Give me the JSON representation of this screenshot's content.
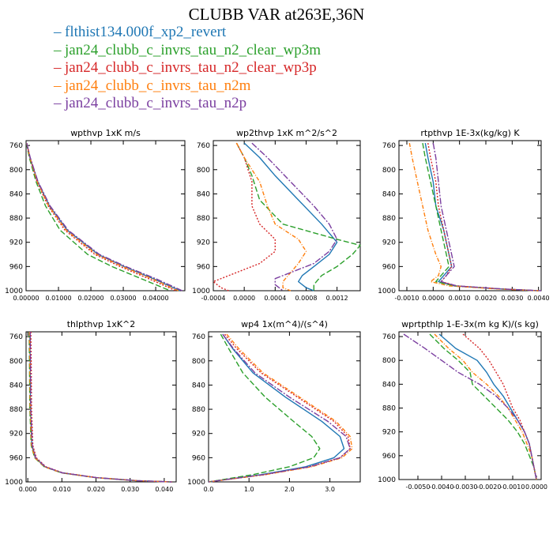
{
  "title": "CLUBB VAR at263E,36N",
  "legend": [
    {
      "name": "flthist134.000f_xp2_revert",
      "color": "#1f77b4"
    },
    {
      "name": "jan24_clubb_c_invrs_tau_n2_clear_wp3m",
      "color": "#2ca02c"
    },
    {
      "name": "jan24_clubb_c_invrs_tau_n2_clear_wp3p",
      "color": "#d62728"
    },
    {
      "name": "jan24_clubb_c_invrs_tau_n2m",
      "color": "#ff7f0e"
    },
    {
      "name": "jan24_clubb_c_invrs_tau_n2p",
      "color": "#7b3fa0"
    }
  ],
  "chart_data": [
    {
      "type": "line",
      "title": "wpthvp   1xK m/s",
      "xlim": [
        0,
        0.049
      ],
      "ylim": [
        1000,
        752
      ],
      "y_inverted": true,
      "xticks": [
        0,
        0.01,
        0.02,
        0.03,
        0.04
      ],
      "xtick_labels": [
        "0.00000",
        "0.01000",
        "0.02000",
        "0.03000",
        "0.04000"
      ],
      "yticks": [
        760,
        800,
        840,
        880,
        920,
        960,
        1000
      ],
      "y": [
        756,
        780,
        820,
        860,
        900,
        940,
        960,
        980,
        1000
      ],
      "series": [
        {
          "x": [
            0.0002,
            0.0012,
            0.0036,
            0.0072,
            0.0127,
            0.0222,
            0.0302,
            0.0392,
            0.0475
          ]
        },
        {
          "x": [
            0.0001,
            0.001,
            0.0031,
            0.006,
            0.0105,
            0.019,
            0.0265,
            0.0355,
            0.0445
          ]
        },
        {
          "x": [
            0.0002,
            0.0012,
            0.0034,
            0.0068,
            0.012,
            0.0212,
            0.029,
            0.0378,
            0.0462
          ]
        },
        {
          "x": [
            0.0002,
            0.0012,
            0.0035,
            0.007,
            0.0124,
            0.0218,
            0.0298,
            0.0388,
            0.047
          ]
        },
        {
          "x": [
            0.0002,
            0.0013,
            0.0037,
            0.0074,
            0.013,
            0.0226,
            0.0308,
            0.04,
            0.0482
          ]
        }
      ]
    },
    {
      "type": "line",
      "title": "wp2thvp   1xK m^2/s^2",
      "xlim": [
        -0.0004,
        0.0015
      ],
      "ylim": [
        1000,
        752
      ],
      "y_inverted": true,
      "xticks": [
        -0.0004,
        0,
        0.0004,
        0.0008,
        0.0012
      ],
      "xtick_labels": [
        "-0.0004",
        "0.0000",
        "0.0004",
        "0.0008",
        "0.0012"
      ],
      "yticks": [
        760,
        800,
        840,
        880,
        920,
        960,
        1000
      ],
      "series": [
        {
          "y": [
            756,
            780,
            810,
            850,
            890,
            920,
            940,
            960,
            975,
            985,
            995,
            1000
          ],
          "x": [
            0.0,
            0.0002,
            0.0004,
            0.0007,
            0.001,
            0.0012,
            0.0011,
            0.0009,
            0.00075,
            0.0007,
            0.0008,
            0.0009
          ]
        },
        {
          "y": [
            756,
            780,
            810,
            850,
            890,
            915,
            925,
            940,
            960,
            975,
            990,
            1000
          ],
          "x": [
            -0.0001,
            0.0,
            0.0001,
            0.0002,
            0.0005,
            0.0012,
            0.0015,
            0.0014,
            0.0012,
            0.001,
            0.0009,
            0.0009
          ]
        },
        {
          "y": [
            756,
            780,
            820,
            860,
            890,
            915,
            935,
            955,
            975,
            985,
            995,
            1000
          ],
          "x": [
            -0.0001,
            0.0,
            0.0001,
            0.0001,
            0.0002,
            0.0004,
            0.0004,
            0.0002,
            -0.0002,
            -0.0004,
            -0.0003,
            -0.0002
          ]
        },
        {
          "y": [
            756,
            780,
            820,
            860,
            890,
            915,
            935,
            955,
            970,
            985,
            995,
            1000
          ],
          "x": [
            -0.0001,
            0.0,
            0.0002,
            0.0003,
            0.0004,
            0.0007,
            0.0008,
            0.0007,
            0.0006,
            0.0005,
            0.0005,
            0.0006
          ]
        },
        {
          "y": [
            756,
            780,
            820,
            860,
            890,
            915,
            935,
            955,
            970,
            980,
            990,
            1000
          ],
          "x": [
            0.0001,
            0.0003,
            0.0006,
            0.0009,
            0.0011,
            0.0012,
            0.0011,
            0.0009,
            0.0006,
            0.0004,
            0.0004,
            0.0005
          ]
        }
      ]
    },
    {
      "type": "line",
      "title": "rtpthvp   1E-3x(kg/kg) K",
      "xlim": [
        -0.0013,
        0.0041
      ],
      "ylim": [
        1000,
        752
      ],
      "y_inverted": true,
      "xticks": [
        -0.001,
        0,
        0.001,
        0.002,
        0.003,
        0.004
      ],
      "xtick_labels": [
        "-0.0010",
        "0.0000",
        "0.0010",
        "0.0020",
        "0.0030",
        "0.0040"
      ],
      "yticks": [
        760,
        800,
        840,
        880,
        920,
        960,
        1000
      ],
      "series": [
        {
          "y": [
            756,
            780,
            820,
            860,
            900,
            940,
            960,
            975,
            985,
            992,
            997,
            1000
          ],
          "x": [
            -0.0003,
            -0.0002,
            0.0,
            0.0001,
            0.0004,
            0.0006,
            0.0007,
            0.0004,
            0.0002,
            0.0008,
            0.0025,
            0.004
          ]
        },
        {
          "y": [
            756,
            780,
            820,
            860,
            900,
            940,
            960,
            975,
            985,
            992,
            997,
            1000
          ],
          "x": [
            -0.0004,
            -0.0003,
            -0.0001,
            0.0001,
            0.0003,
            0.0005,
            0.0006,
            0.0003,
            0.0001,
            0.0008,
            0.0025,
            0.004
          ]
        },
        {
          "y": [
            756,
            780,
            820,
            860,
            900,
            940,
            960,
            975,
            985,
            992,
            997,
            1000
          ],
          "x": [
            -0.0002,
            -0.0001,
            0.0001,
            0.0002,
            0.0004,
            0.0006,
            0.0007,
            0.0005,
            0.0003,
            0.0009,
            0.0026,
            0.004
          ]
        },
        {
          "y": [
            756,
            780,
            820,
            860,
            900,
            940,
            960,
            975,
            985,
            992,
            997,
            1000
          ],
          "x": [
            -0.0009,
            -0.0008,
            -0.0006,
            -0.0004,
            -0.0002,
            0.0001,
            0.0003,
            0.0002,
            -0.0001,
            0.0006,
            0.0024,
            0.004
          ]
        },
        {
          "y": [
            756,
            780,
            820,
            860,
            900,
            940,
            960,
            975,
            985,
            992,
            997,
            1000
          ],
          "x": [
            0.0,
            0.0001,
            0.0002,
            0.0003,
            0.0005,
            0.0007,
            0.0008,
            0.0005,
            0.0003,
            0.0009,
            0.0026,
            0.0041
          ]
        }
      ]
    },
    {
      "type": "line",
      "title": "thlpthvp   1xK^2",
      "xlim": [
        -0.0005,
        0.0435
      ],
      "ylim": [
        1000,
        752
      ],
      "y_inverted": true,
      "xticks": [
        0,
        0.01,
        0.02,
        0.03,
        0.04
      ],
      "xtick_labels": [
        "0.000",
        "0.010",
        "0.020",
        "0.030",
        "0.040"
      ],
      "yticks": [
        760,
        800,
        840,
        880,
        920,
        960,
        1000
      ],
      "y": [
        752,
        800,
        880,
        940,
        960,
        975,
        985,
        993,
        998,
        1000
      ],
      "series": [
        {
          "x": [
            0.0006,
            0.0007,
            0.0008,
            0.0012,
            0.0022,
            0.005,
            0.01,
            0.02,
            0.032,
            0.042
          ]
        },
        {
          "x": [
            0.0004,
            0.0005,
            0.0006,
            0.001,
            0.002,
            0.0048,
            0.0098,
            0.0198,
            0.0318,
            0.0418
          ]
        },
        {
          "x": [
            0.0009,
            0.001,
            0.0011,
            0.0015,
            0.0025,
            0.0053,
            0.0103,
            0.0203,
            0.0323,
            0.0423
          ]
        },
        {
          "x": [
            0.0005,
            0.0006,
            0.0007,
            0.0011,
            0.0021,
            0.0049,
            0.0099,
            0.0199,
            0.0319,
            0.0419
          ]
        },
        {
          "x": [
            0.0007,
            0.0008,
            0.0009,
            0.0013,
            0.0023,
            0.0051,
            0.0101,
            0.0201,
            0.0321,
            0.0421
          ]
        }
      ]
    },
    {
      "type": "line",
      "title": "wp4   1x(m^4)/(s^4)",
      "xlim": [
        0,
        3.75
      ],
      "ylim": [
        1000,
        752
      ],
      "y_inverted": true,
      "xticks": [
        0,
        1,
        2,
        3
      ],
      "xtick_labels": [
        "0.0",
        "1.0",
        "2.0",
        "3.0"
      ],
      "yticks": [
        760,
        800,
        840,
        880,
        920,
        960,
        1000
      ],
      "y": [
        756,
        780,
        820,
        860,
        900,
        925,
        945,
        960,
        975,
        988,
        1000
      ],
      "series": [
        {
          "x": [
            0.35,
            0.6,
            1.1,
            1.9,
            2.8,
            3.25,
            3.35,
            3.1,
            2.4,
            1.3,
            0.0
          ]
        },
        {
          "x": [
            0.3,
            0.5,
            0.85,
            1.4,
            2.1,
            2.55,
            2.75,
            2.6,
            2.0,
            1.1,
            0.0
          ]
        },
        {
          "x": [
            0.4,
            0.7,
            1.3,
            2.2,
            3.1,
            3.45,
            3.5,
            3.25,
            2.5,
            1.4,
            0.0
          ]
        },
        {
          "x": [
            0.45,
            0.75,
            1.35,
            2.25,
            3.15,
            3.5,
            3.55,
            3.3,
            2.55,
            1.4,
            0.0
          ]
        },
        {
          "x": [
            0.35,
            0.62,
            1.15,
            2.0,
            2.95,
            3.4,
            3.5,
            3.25,
            2.5,
            1.35,
            0.0
          ]
        }
      ]
    },
    {
      "type": "line",
      "title": "wprtpthlp   1-E-3x(m kg K)/(s kg)",
      "xlim": [
        -0.0058,
        0.0002
      ],
      "ylim": [
        1000,
        752
      ],
      "y_inverted": true,
      "xticks": [
        -0.005,
        -0.004,
        -0.003,
        -0.002,
        -0.001,
        0
      ],
      "xtick_labels": [
        "-0.0050",
        "-0.0040",
        "-0.0030",
        "-0.0020",
        "-0.0010",
        "0.0000"
      ],
      "yticks": [
        760,
        800,
        840,
        880,
        920,
        960,
        1000
      ],
      "y": [
        756,
        780,
        800,
        820,
        840,
        860,
        880,
        900,
        920,
        940,
        960,
        980,
        1000
      ],
      "series": [
        {
          "x": [
            -0.0041,
            -0.0034,
            -0.0025,
            -0.0021,
            -0.0018,
            -0.0014,
            -0.0011,
            -0.0008,
            -0.0005,
            -0.0003,
            -0.0002,
            -0.0001,
            0.0
          ]
        },
        {
          "x": [
            -0.0045,
            -0.0039,
            -0.0033,
            -0.0028,
            -0.0027,
            -0.0022,
            -0.0017,
            -0.0012,
            -0.0008,
            -0.0005,
            -0.0003,
            -0.0001,
            0.0
          ]
        },
        {
          "x": [
            -0.0031,
            -0.0024,
            -0.002,
            -0.0017,
            -0.0014,
            -0.0012,
            -0.001,
            -0.0007,
            -0.0005,
            -0.0003,
            -0.0002,
            -0.0001,
            0.0
          ]
        },
        {
          "x": [
            -0.0043,
            -0.0037,
            -0.0031,
            -0.0027,
            -0.0021,
            -0.0016,
            -0.0012,
            -0.0009,
            -0.0006,
            -0.0004,
            -0.0002,
            -0.0001,
            0.0
          ]
        },
        {
          "x": [
            -0.0056,
            -0.0047,
            -0.004,
            -0.0033,
            -0.0024,
            -0.0017,
            -0.0012,
            -0.0008,
            -0.0005,
            -0.0003,
            -0.0002,
            -0.0001,
            0.0
          ]
        }
      ]
    }
  ]
}
